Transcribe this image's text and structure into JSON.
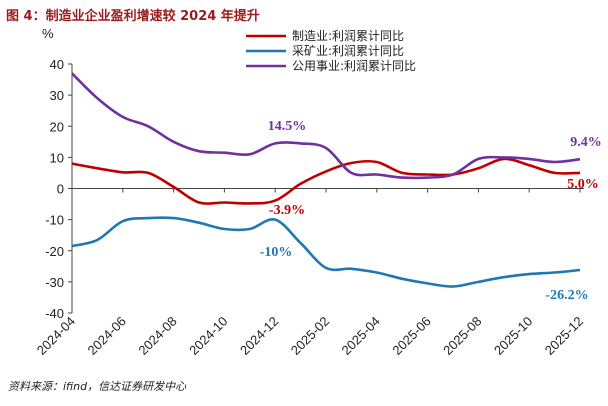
{
  "title": "图 4：制造业企业盈利增速较 2024 年提升",
  "source": "资料来源：ifind，信达证券研发中心",
  "colors": {
    "manufacturing": "#c00000",
    "mining": "#1f77b4",
    "utilities": "#7030a0"
  },
  "chart_data": {
    "type": "line",
    "ylabel": "%",
    "ylim": [
      -40,
      40
    ],
    "yticks": [
      40,
      30,
      20,
      10,
      0,
      -10,
      -20,
      -30,
      -40
    ],
    "xticks": [
      "2024-04",
      "2024-06",
      "2024-08",
      "2024-10",
      "2024-12",
      "2025-02",
      "2025-04",
      "2025-06",
      "2025-08",
      "2025-10",
      "2025-12"
    ],
    "series": [
      {
        "name": "制造业:利润累计同比",
        "key": "manufacturing",
        "points": [
          [
            0,
            8.0
          ],
          [
            1,
            6.5
          ],
          [
            2,
            5.2
          ],
          [
            3,
            5.0
          ],
          [
            4,
            0.5
          ],
          [
            5,
            -4.5
          ],
          [
            6,
            -4.5
          ],
          [
            7,
            -4.8
          ],
          [
            8,
            -3.9
          ],
          [
            9,
            1.5
          ],
          [
            10,
            5.5
          ],
          [
            11,
            8.2
          ],
          [
            12,
            8.5
          ],
          [
            13,
            5.0
          ],
          [
            14,
            4.5
          ],
          [
            15,
            4.5
          ],
          [
            16,
            6.5
          ],
          [
            17,
            9.5
          ],
          [
            18,
            7.5
          ],
          [
            19,
            5.0
          ],
          [
            20,
            5.0
          ]
        ]
      },
      {
        "name": "采矿业:利润累计同比",
        "key": "mining",
        "points": [
          [
            0,
            -18.5
          ],
          [
            1,
            -16.5
          ],
          [
            2,
            -10.5
          ],
          [
            3,
            -9.5
          ],
          [
            4,
            -9.5
          ],
          [
            5,
            -11.0
          ],
          [
            6,
            -13.0
          ],
          [
            7,
            -13.0
          ],
          [
            8,
            -10.0
          ],
          [
            9,
            -17.5
          ],
          [
            10,
            -25.5
          ],
          [
            11,
            -25.8
          ],
          [
            12,
            -27.0
          ],
          [
            13,
            -29.0
          ],
          [
            14,
            -30.5
          ],
          [
            15,
            -31.5
          ],
          [
            16,
            -30.0
          ],
          [
            17,
            -28.5
          ],
          [
            18,
            -27.5
          ],
          [
            19,
            -27.0
          ],
          [
            20,
            -26.2
          ]
        ]
      },
      {
        "name": "公用事业:利润累计同比",
        "key": "utilities",
        "points": [
          [
            0,
            37.0
          ],
          [
            1,
            29.0
          ],
          [
            2,
            23.0
          ],
          [
            3,
            20.0
          ],
          [
            4,
            15.0
          ],
          [
            5,
            12.0
          ],
          [
            6,
            11.5
          ],
          [
            7,
            11.0
          ],
          [
            8,
            14.5
          ],
          [
            9,
            14.5
          ],
          [
            10,
            13.0
          ],
          [
            11,
            5.0
          ],
          [
            12,
            4.5
          ],
          [
            13,
            3.5
          ],
          [
            14,
            3.5
          ],
          [
            15,
            4.5
          ],
          [
            16,
            9.5
          ],
          [
            17,
            10.0
          ],
          [
            18,
            9.5
          ],
          [
            19,
            8.5
          ],
          [
            20,
            9.4
          ]
        ]
      }
    ],
    "annotations": [
      {
        "text": "14.5%",
        "key": "utilities"
      },
      {
        "text": "9.4%",
        "key": "utilities"
      },
      {
        "text": "-3.9%",
        "key": "manufacturing"
      },
      {
        "text": "5.0%",
        "key": "manufacturing"
      },
      {
        "text": "-10%",
        "key": "mining"
      },
      {
        "text": "-26.2%",
        "key": "mining"
      }
    ]
  }
}
